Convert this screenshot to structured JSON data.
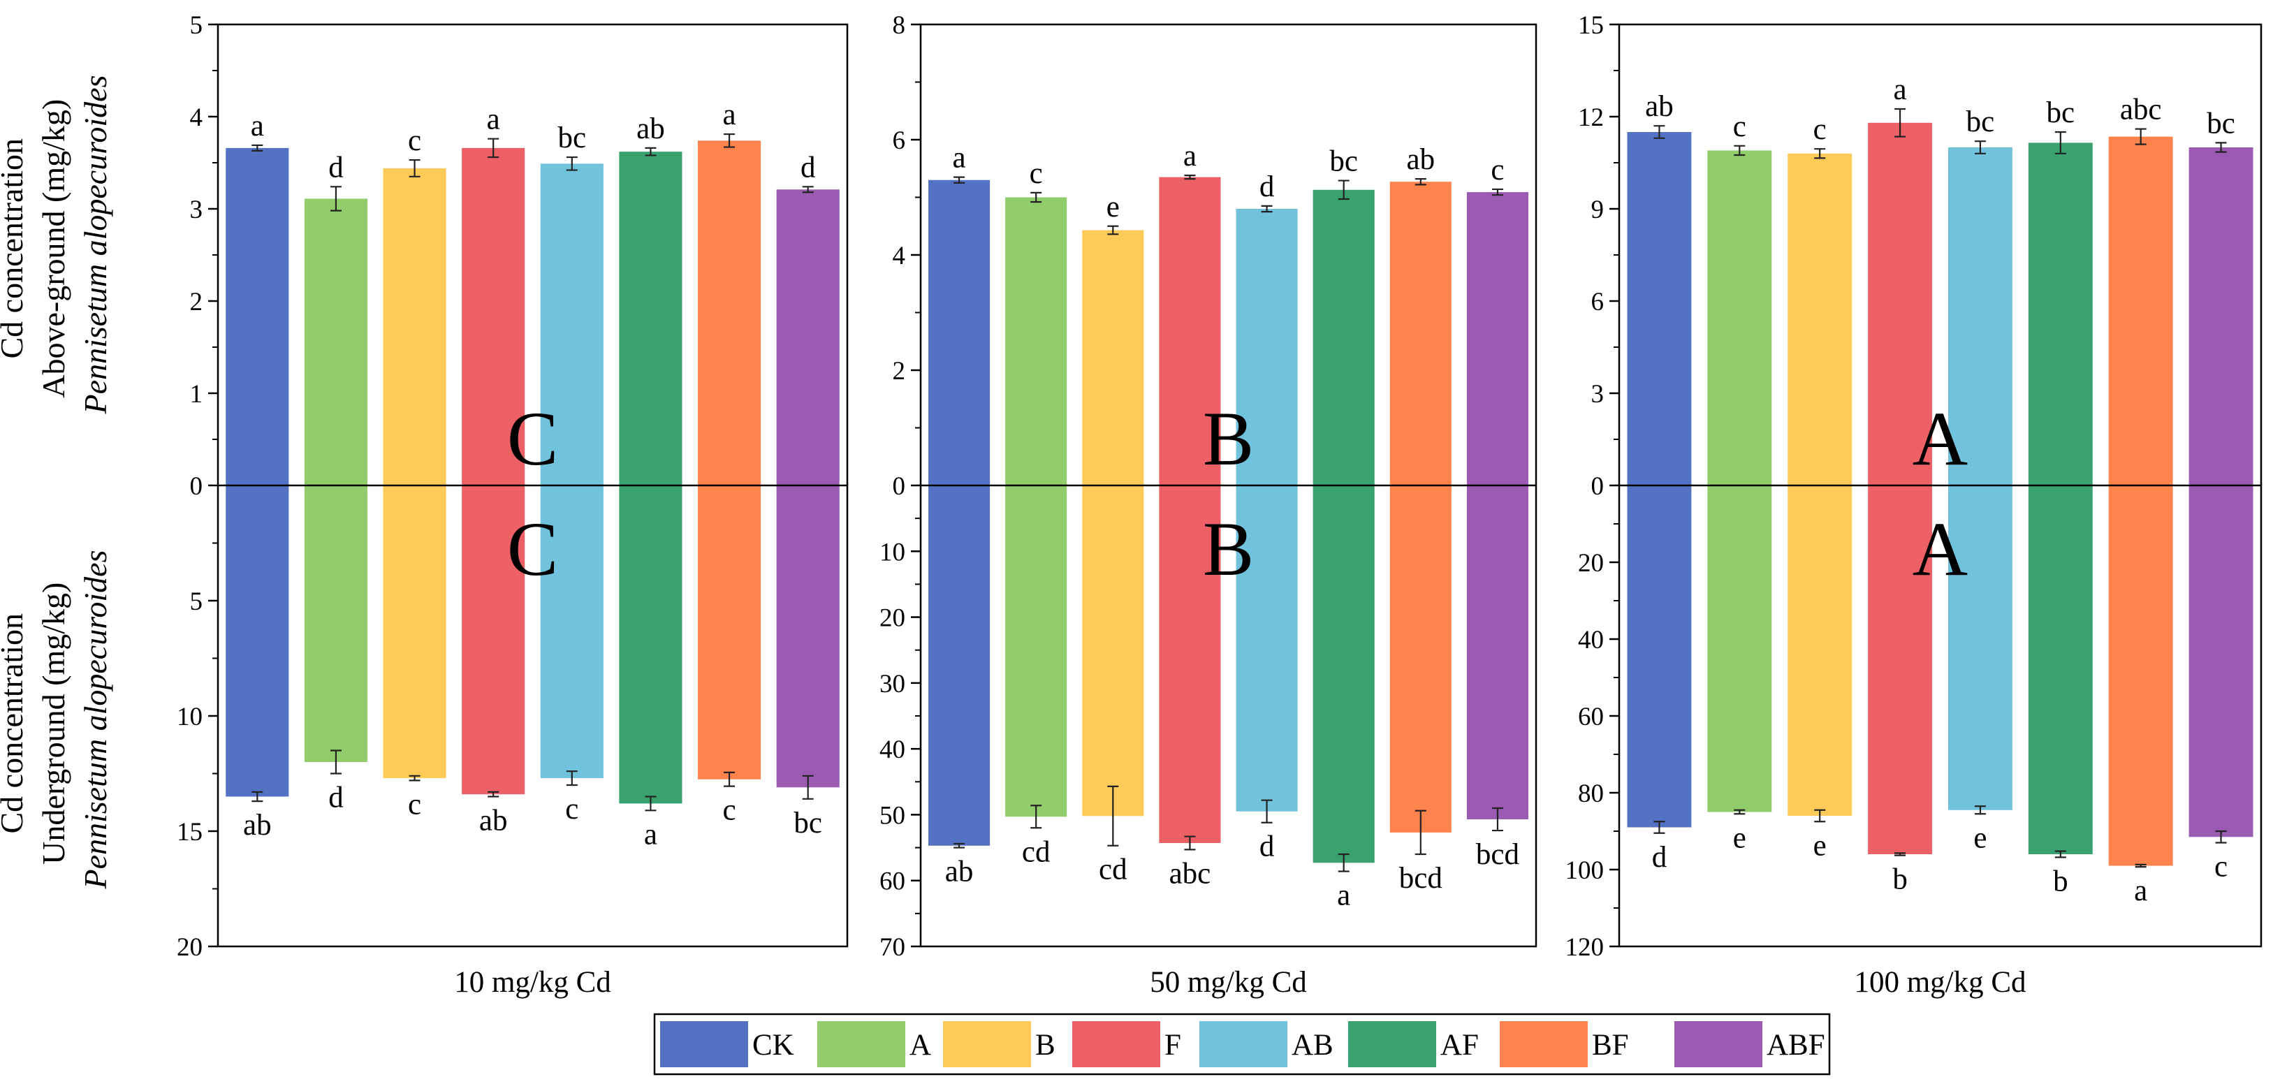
{
  "chart_data": {
    "type": "bar",
    "subtype": "mirrored",
    "y_axis_left_upper": [
      "Cd concentration",
      "Above-ground (mg/kg)",
      "Pennisetum alopecuroides"
    ],
    "y_axis_left_lower": [
      "Cd concentration",
      "Underground (mg/kg)",
      "Pennisetum alopecuroides"
    ],
    "categories": [
      "CK",
      "A",
      "B",
      "F",
      "AB",
      "AF",
      "BF",
      "ABF"
    ],
    "colors": [
      "#5472C4",
      "#92CD6B",
      "#FECA58",
      "#EC6066",
      "#71C2DC",
      "#39A26F",
      "#FE834D",
      "#9B5BB3"
    ],
    "grid": false,
    "legend_position": "bottom",
    "panels": [
      {
        "xlabel": "10 mg/kg Cd",
        "group_letter_upper": "C",
        "group_letter_lower": "C",
        "upper": {
          "ylim": [
            0,
            5
          ],
          "ticks": [
            "0",
            "1",
            "2",
            "3",
            "4",
            "5"
          ],
          "values": [
            3.66,
            3.11,
            3.44,
            3.66,
            3.49,
            3.62,
            3.74,
            3.21
          ],
          "errors": [
            0.03,
            0.13,
            0.09,
            0.1,
            0.07,
            0.04,
            0.07,
            0.03
          ],
          "labels": [
            "a",
            "d",
            "c",
            "a",
            "bc",
            "ab",
            "a",
            "d"
          ]
        },
        "lower": {
          "ylim": [
            0,
            20
          ],
          "ticks": [
            "0",
            "5",
            "10",
            "15",
            "20"
          ],
          "values": [
            13.5,
            12.0,
            12.7,
            13.4,
            12.7,
            13.8,
            12.75,
            13.1
          ],
          "errors": [
            0.2,
            0.5,
            0.1,
            0.1,
            0.3,
            0.3,
            0.3,
            0.5
          ],
          "labels": [
            "ab",
            "d",
            "c",
            "ab",
            "c",
            "a",
            "c",
            "bc"
          ]
        }
      },
      {
        "xlabel": "50 mg/kg Cd",
        "group_letter_upper": "B",
        "group_letter_lower": "B",
        "upper": {
          "ylim": [
            0,
            8
          ],
          "ticks": [
            "0",
            "2",
            "4",
            "6",
            "8"
          ],
          "values": [
            5.3,
            5.0,
            4.43,
            5.35,
            4.8,
            5.13,
            5.27,
            5.09
          ],
          "errors": [
            0.05,
            0.08,
            0.07,
            0.03,
            0.05,
            0.16,
            0.05,
            0.05
          ],
          "labels": [
            "a",
            "c",
            "e",
            "a",
            "d",
            "bc",
            "ab",
            "c"
          ]
        },
        "lower": {
          "ylim": [
            0,
            70
          ],
          "ticks": [
            "0",
            "10",
            "20",
            "30",
            "40",
            "50",
            "60",
            "70"
          ],
          "values": [
            54.7,
            50.3,
            50.2,
            54.3,
            49.5,
            57.3,
            52.7,
            50.7
          ],
          "errors": [
            0.3,
            1.7,
            4.5,
            1.0,
            1.7,
            1.3,
            3.3,
            1.7
          ],
          "labels": [
            "ab",
            "cd",
            "cd",
            "abc",
            "d",
            "a",
            "bcd",
            "bcd"
          ]
        }
      },
      {
        "xlabel": "100 mg/kg Cd",
        "group_letter_upper": "A",
        "group_letter_lower": "A",
        "upper": {
          "ylim": [
            0,
            15
          ],
          "ticks": [
            "0",
            "3",
            "6",
            "9",
            "12",
            "15"
          ],
          "values": [
            11.5,
            10.9,
            10.8,
            11.8,
            11.0,
            11.15,
            11.35,
            11.0
          ],
          "errors": [
            0.2,
            0.15,
            0.15,
            0.45,
            0.2,
            0.35,
            0.25,
            0.15
          ],
          "labels": [
            "ab",
            "c",
            "c",
            "a",
            "bc",
            "bc",
            "abc",
            "bc"
          ]
        },
        "lower": {
          "ylim": [
            0,
            120
          ],
          "ticks": [
            "0",
            "20",
            "40",
            "60",
            "80",
            "100",
            "120"
          ],
          "values": [
            89.0,
            85.0,
            86.0,
            96.0,
            84.5,
            96.0,
            99.0,
            91.5
          ],
          "errors": [
            1.5,
            0.5,
            1.5,
            0.3,
            1.0,
            0.8,
            0.3,
            1.5
          ],
          "labels": [
            "d",
            "e",
            "e",
            "b",
            "e",
            "b",
            "a",
            "c"
          ]
        }
      }
    ]
  }
}
